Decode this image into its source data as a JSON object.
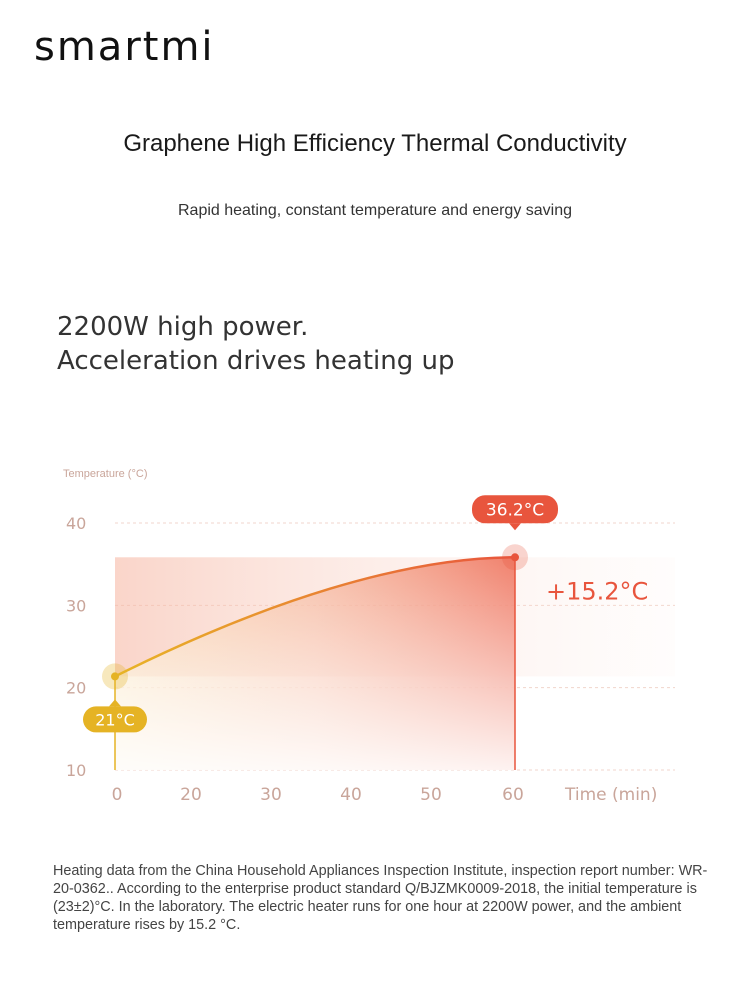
{
  "brand": {
    "logo_text": "smartmi"
  },
  "header": {
    "title": "Graphene High Efficiency Thermal Conductivity",
    "subtitle": "Rapid heating, constant temperature and energy saving"
  },
  "power_text": {
    "line1": "2200W high power.",
    "line2": "Acceleration drives heating up"
  },
  "chart_data": {
    "type": "area",
    "ylabel": "Temperature (°C)",
    "xlabel": "Time (min)",
    "x_ticks": [
      "0",
      "20",
      "30",
      "40",
      "50",
      "60"
    ],
    "y_ticks": [
      "40",
      "30",
      "20",
      "10"
    ],
    "ylim": [
      10,
      40
    ],
    "x": [
      0,
      60
    ],
    "start_point": {
      "x": 0,
      "y": 21,
      "label": "21°C"
    },
    "end_point": {
      "x": 60,
      "y": 36.2,
      "label": "36.2°C"
    },
    "rise_label": "+15.2°C",
    "grid": true,
    "colors": {
      "accent": "#e8553d",
      "start": "#e5b324",
      "axis_text": "#c9a59a"
    }
  },
  "footnote": "Heating data from the China Household Appliances Inspection Institute, inspection report number: WR-20-0362.. According to the enterprise product standard Q/BJZMK0009-2018, the initial temperature is (23±2)°C. In the laboratory. The electric heater runs for one hour at 2200W power, and the ambient temperature rises by 15.2 °C."
}
